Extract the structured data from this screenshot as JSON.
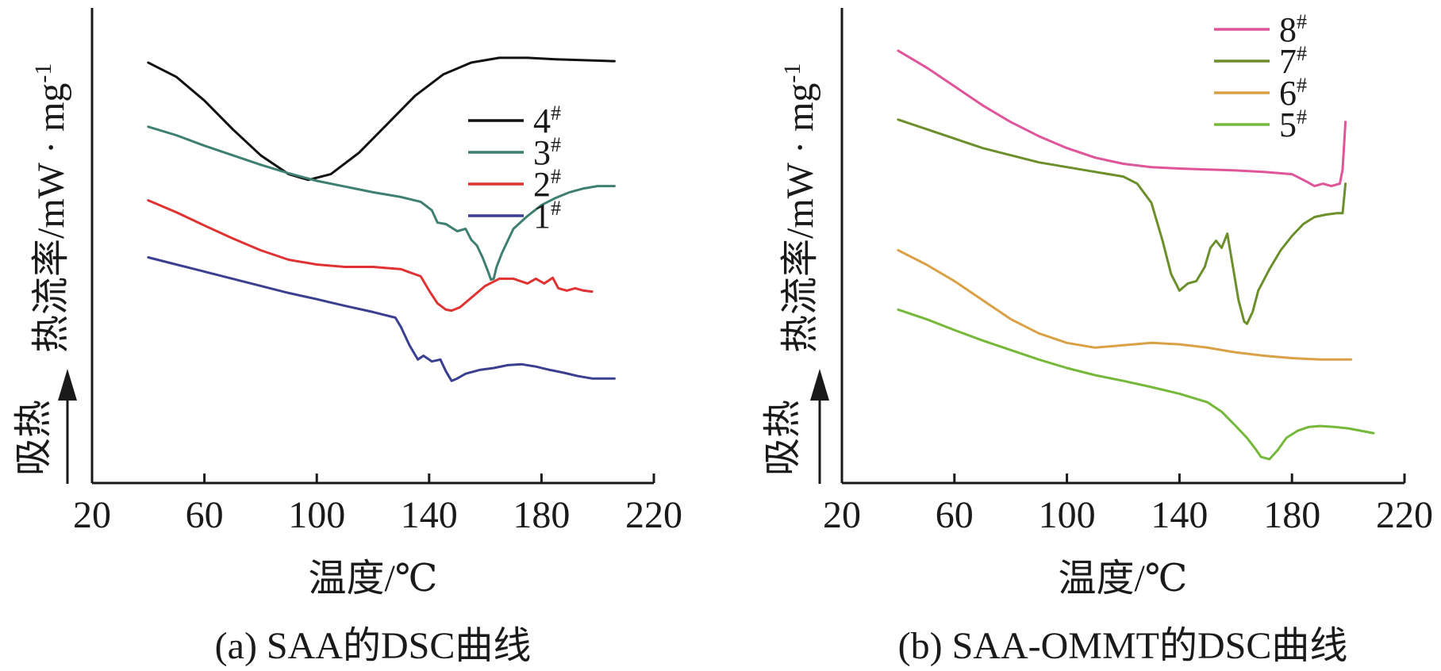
{
  "chart_data": [
    {
      "type": "line",
      "caption": "(a) SAA的DSC曲线",
      "xlabel": "温度/℃",
      "ylabel": "热流率/mW · mg",
      "ylabel_superscript": "-1",
      "ylabel_direction": "吸热",
      "xlim": [
        20,
        220
      ],
      "xticks": [
        "20",
        "60",
        "100",
        "140",
        "180",
        "220"
      ],
      "yticks": [],
      "grid": false,
      "legend_position": "right",
      "legend": [
        {
          "label": "4",
          "sup": "#",
          "color": "#111111"
        },
        {
          "label": "3",
          "sup": "#",
          "color": "#3e7f72"
        },
        {
          "label": "2",
          "sup": "#",
          "color": "#e03232"
        },
        {
          "label": "1",
          "sup": "#",
          "color": "#3a3f8f"
        }
      ],
      "series": [
        {
          "name": "4#",
          "color": "#111111",
          "x": [
            40,
            50,
            60,
            70,
            80,
            90,
            97,
            105,
            115,
            125,
            135,
            145,
            155,
            165,
            175,
            185,
            195,
            206
          ],
          "y": [
            8.85,
            8.55,
            8.05,
            7.45,
            6.9,
            6.5,
            6.38,
            6.5,
            6.95,
            7.55,
            8.15,
            8.6,
            8.85,
            8.95,
            8.95,
            8.92,
            8.9,
            8.88
          ]
        },
        {
          "name": "3#",
          "color": "#3e7f72",
          "x": [
            40,
            50,
            60,
            70,
            80,
            90,
            100,
            110,
            120,
            130,
            137,
            141,
            143,
            146,
            150,
            153,
            155,
            157,
            159,
            161,
            162,
            163,
            164,
            166,
            168,
            170,
            175,
            180,
            185,
            190,
            195,
            200,
            206
          ],
          "y": [
            7.5,
            7.32,
            7.1,
            6.9,
            6.7,
            6.52,
            6.36,
            6.24,
            6.12,
            6.02,
            5.92,
            5.74,
            5.48,
            5.45,
            5.3,
            5.35,
            5.12,
            5.0,
            4.75,
            4.45,
            4.28,
            4.3,
            4.55,
            4.85,
            5.1,
            5.35,
            5.62,
            5.85,
            6.0,
            6.12,
            6.2,
            6.25,
            6.25
          ]
        },
        {
          "name": "2#",
          "color": "#e03232",
          "x": [
            40,
            50,
            60,
            70,
            80,
            90,
            100,
            110,
            120,
            130,
            137,
            140,
            143,
            146,
            148,
            151,
            155,
            160,
            165,
            170,
            175,
            178,
            181,
            184,
            186,
            189,
            192,
            195,
            198
          ],
          "y": [
            5.95,
            5.7,
            5.42,
            5.15,
            4.9,
            4.7,
            4.6,
            4.55,
            4.55,
            4.5,
            4.35,
            4.05,
            3.78,
            3.65,
            3.63,
            3.7,
            3.9,
            4.15,
            4.3,
            4.3,
            4.2,
            4.3,
            4.2,
            4.32,
            4.1,
            4.05,
            4.1,
            4.05,
            4.03
          ]
        },
        {
          "name": "1#",
          "color": "#3a3f8f",
          "x": [
            40,
            50,
            60,
            70,
            80,
            90,
            100,
            110,
            120,
            128,
            130,
            133,
            136,
            138,
            141,
            144,
            146,
            148,
            150,
            153,
            158,
            163,
            168,
            173,
            178,
            183,
            188,
            193,
            198,
            206
          ],
          "y": [
            4.75,
            4.6,
            4.45,
            4.3,
            4.15,
            4.0,
            3.87,
            3.73,
            3.6,
            3.48,
            3.28,
            2.9,
            2.6,
            2.68,
            2.56,
            2.6,
            2.35,
            2.15,
            2.2,
            2.3,
            2.38,
            2.42,
            2.48,
            2.5,
            2.45,
            2.38,
            2.32,
            2.25,
            2.2,
            2.2
          ]
        }
      ]
    },
    {
      "type": "line",
      "caption": "(b) SAA-OMMT的DSC曲线",
      "xlabel": "温度/℃",
      "ylabel": "热流率/mW · mg",
      "ylabel_superscript": "-1",
      "ylabel_direction": "吸热",
      "xlim": [
        20,
        220
      ],
      "xticks": [
        "20",
        "60",
        "100",
        "140",
        "180",
        "220"
      ],
      "yticks": [],
      "grid": false,
      "legend_position": "top-right",
      "legend": [
        {
          "label": "8",
          "sup": "#",
          "color": "#e0549a"
        },
        {
          "label": "7",
          "sup": "#",
          "color": "#6b8f2b"
        },
        {
          "label": "6",
          "sup": "#",
          "color": "#d9a046"
        },
        {
          "label": "5",
          "sup": "#",
          "color": "#76b83a"
        }
      ],
      "series": [
        {
          "name": "8#",
          "color": "#e0549a",
          "x": [
            40,
            50,
            60,
            70,
            80,
            90,
            100,
            110,
            120,
            130,
            140,
            150,
            160,
            170,
            180,
            185,
            188,
            191,
            194,
            197,
            198,
            199
          ],
          "y": [
            9.1,
            8.75,
            8.35,
            7.95,
            7.6,
            7.3,
            7.05,
            6.85,
            6.72,
            6.65,
            6.62,
            6.6,
            6.58,
            6.55,
            6.5,
            6.35,
            6.25,
            6.3,
            6.25,
            6.3,
            6.6,
            7.6
          ]
        },
        {
          "name": "7#",
          "color": "#6b8f2b",
          "x": [
            40,
            50,
            60,
            70,
            80,
            90,
            100,
            110,
            120,
            125,
            130,
            134,
            137,
            140,
            143,
            146,
            149,
            151,
            153,
            155,
            157,
            159,
            161,
            163,
            164,
            166,
            168,
            172,
            176,
            180,
            184,
            188,
            192,
            196,
            198,
            199
          ],
          "y": [
            7.65,
            7.45,
            7.25,
            7.05,
            6.9,
            6.75,
            6.65,
            6.55,
            6.45,
            6.3,
            5.9,
            5.1,
            4.4,
            4.05,
            4.2,
            4.25,
            4.55,
            4.95,
            5.1,
            4.95,
            5.25,
            4.55,
            3.85,
            3.4,
            3.35,
            3.6,
            4.05,
            4.5,
            4.9,
            5.2,
            5.45,
            5.6,
            5.65,
            5.68,
            5.68,
            6.3
          ]
        },
        {
          "name": "6#",
          "color": "#d9a046",
          "x": [
            40,
            50,
            60,
            70,
            80,
            90,
            100,
            110,
            120,
            130,
            140,
            150,
            160,
            170,
            180,
            190,
            201
          ],
          "y": [
            4.9,
            4.6,
            4.25,
            3.85,
            3.45,
            3.15,
            2.95,
            2.85,
            2.9,
            2.95,
            2.92,
            2.85,
            2.75,
            2.68,
            2.63,
            2.6,
            2.6
          ]
        },
        {
          "name": "5#",
          "color": "#76b83a",
          "x": [
            40,
            50,
            60,
            70,
            80,
            90,
            100,
            110,
            120,
            130,
            140,
            150,
            155,
            160,
            164,
            167,
            169,
            172,
            175,
            178,
            182,
            186,
            190,
            195,
            200,
            209
          ],
          "y": [
            3.65,
            3.45,
            3.22,
            3.0,
            2.8,
            2.6,
            2.42,
            2.27,
            2.15,
            2.02,
            1.88,
            1.7,
            1.5,
            1.2,
            0.95,
            0.72,
            0.55,
            0.5,
            0.7,
            0.95,
            1.1,
            1.18,
            1.2,
            1.18,
            1.15,
            1.05
          ]
        }
      ]
    }
  ]
}
